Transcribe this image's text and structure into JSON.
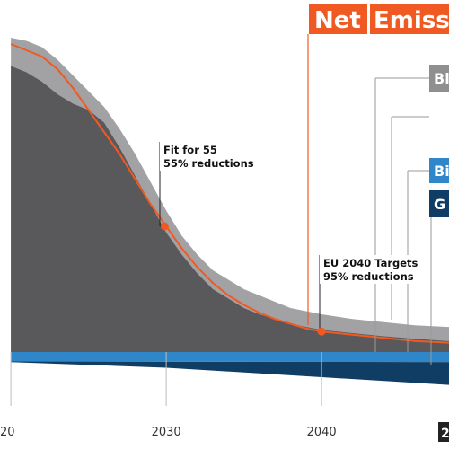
{
  "title": {
    "word1": "Net",
    "word2": "Emiss"
  },
  "chart_data": {
    "type": "area",
    "x_ticks": [
      "20",
      "2030",
      "2040"
    ],
    "x_tick_values": [
      2020,
      2030,
      2040
    ],
    "badge_text": "2",
    "legend_entries": [
      {
        "label": "Bi",
        "color": "#8f8f8f"
      },
      {
        "label": "Bi",
        "color": "#2f86c8"
      },
      {
        "label": "G",
        "color": "#103d63"
      }
    ],
    "annotations": [
      {
        "title": "Fit for 55",
        "sub": "55% reductions",
        "year": 2029.9
      },
      {
        "title": "EU 2040 Targets",
        "sub": "95% reductions",
        "year": 2040
      }
    ],
    "colors": {
      "gross_light": "#a2a2a4",
      "gross_dark": "#59595b",
      "sink_blue": "#2f86c8",
      "sink_navy": "#103d63",
      "net_line": "#f05a22"
    },
    "series": [
      {
        "x": [
          2020,
          2021,
          2022,
          2023,
          2024,
          2025,
          2026,
          2027,
          2028,
          2029,
          2030,
          2031,
          2032,
          2033,
          2034,
          2035,
          2036,
          2037,
          2038,
          2039,
          2040,
          2042,
          2044,
          2046,
          2048,
          2050
        ],
        "values": [
          100,
          99,
          97,
          93,
          88,
          83,
          78,
          71,
          63,
          54,
          45,
          37,
          31,
          26,
          23,
          20,
          18,
          16,
          14,
          13,
          12,
          10.5,
          9.5,
          8.5,
          8,
          7.5
        ]
      },
      {
        "x": [
          2020,
          2021,
          2022,
          2023,
          2024,
          2025,
          2026,
          2027,
          2028,
          2029,
          2030,
          2031,
          2032,
          2033,
          2034,
          2035,
          2036,
          2037,
          2038,
          2039,
          2040,
          2042,
          2044,
          2046,
          2048,
          2050
        ],
        "values": [
          91,
          89,
          86,
          82,
          79,
          77,
          73,
          65,
          56,
          47,
          38,
          31,
          25,
          20,
          17,
          14,
          12,
          10.5,
          9,
          8,
          7,
          6,
          5,
          4.2,
          3.5,
          3
        ]
      },
      {
        "x": [
          2020,
          2021,
          2022,
          2023,
          2024,
          2025,
          2026,
          2027,
          2028,
          2029,
          2030,
          2031,
          2032,
          2033,
          2034,
          2035,
          2036,
          2037,
          2038,
          2039,
          2040,
          2042,
          2044,
          2046,
          2048,
          2050
        ],
        "values": [
          98,
          96,
          94,
          90,
          84,
          77,
          70,
          63,
          55,
          47,
          40,
          33,
          27,
          22,
          18,
          15,
          12.5,
          10.5,
          9,
          7.5,
          6.5,
          5.5,
          4.5,
          3.5,
          3,
          2.5
        ]
      }
    ],
    "net_series": {
      "x": [
        2020,
        2021,
        2022,
        2023,
        2024,
        2025,
        2026,
        2027,
        2028,
        2029,
        2030,
        2031,
        2032,
        2033,
        2034,
        2035,
        2036,
        2037,
        2038,
        2039,
        2040,
        2042,
        2044,
        2046,
        2048,
        2050
      ],
      "values": [
        98,
        96,
        94,
        90,
        84,
        77,
        70,
        63,
        55,
        47,
        40,
        33,
        27,
        22,
        18,
        15,
        12.5,
        10.5,
        9,
        7.5,
        6.5,
        5.5,
        4.5,
        3.5,
        3,
        2.5
      ]
    },
    "sink_blue": {
      "x": [
        2020,
        2050
      ],
      "values": [
        -3,
        -3.2
      ]
    },
    "sink_navy": {
      "x": [
        2020,
        2030,
        2040,
        2050
      ],
      "values": [
        -3.2,
        -5,
        -8,
        -11
      ]
    }
  }
}
